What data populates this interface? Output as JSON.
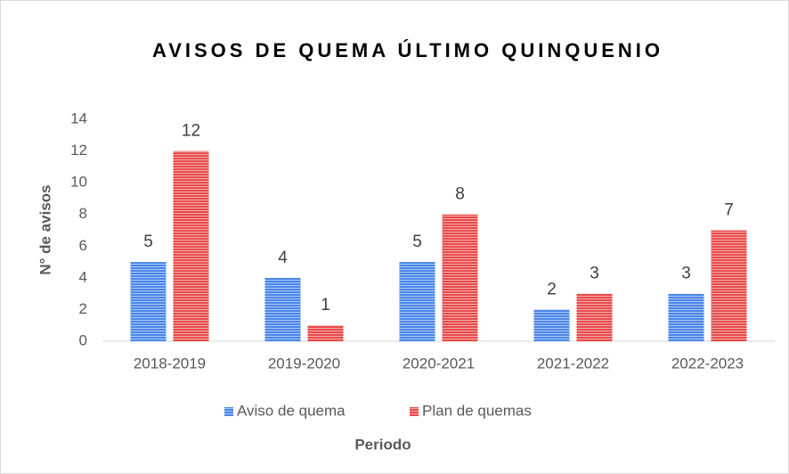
{
  "chart_data": {
    "type": "bar",
    "title": "AVISOS DE QUEMA ÚLTIMO QUINQUENIO",
    "x_label": "Periodo",
    "y_label": "N° de avisos",
    "categories": [
      "2018-2019",
      "2019-2020",
      "2020-2021",
      "2021-2022",
      "2022-2023"
    ],
    "series": [
      {
        "name": "Aviso de quema",
        "color": "#4a86e8",
        "values": [
          5,
          4,
          5,
          2,
          3
        ]
      },
      {
        "name": "Plan de quemas",
        "color": "#e84a4a",
        "values": [
          12,
          1,
          8,
          3,
          7
        ]
      }
    ],
    "ylim": [
      0,
      14
    ],
    "yticks": [
      0,
      2,
      4,
      6,
      8,
      10,
      12,
      14
    ],
    "grid": false,
    "legend": "bottom"
  }
}
